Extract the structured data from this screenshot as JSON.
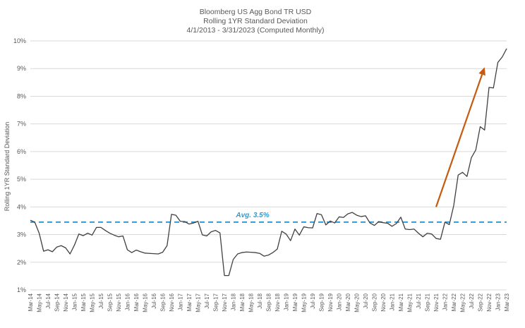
{
  "chart_data": {
    "type": "line",
    "title_lines": [
      "Bloomberg US Agg Bond TR USD",
      "Rolling 1YR Standard Deviation",
      "4/1/2013 - 3/31/2023 (Computed Monthly)"
    ],
    "xlabel": "",
    "ylabel": "Rolling 1YR Standard Deviation",
    "ylim": [
      1,
      10
    ],
    "yticks": [
      1,
      2,
      3,
      4,
      5,
      6,
      7,
      8,
      9,
      10
    ],
    "ytick_labels": [
      "1%",
      "2%",
      "3%",
      "4%",
      "5%",
      "6%",
      "7%",
      "8%",
      "9%",
      "10%"
    ],
    "grid": "horizontal",
    "xtick_labels": [
      "Mar-14",
      "May-14",
      "Jul-14",
      "Sep-14",
      "Nov-14",
      "Jan-15",
      "Mar-15",
      "May-15",
      "Jul-15",
      "Sep-15",
      "Nov-15",
      "Jan-16",
      "Mar-16",
      "May-16",
      "Jul-16",
      "Sep-16",
      "Nov-16",
      "Jan-17",
      "Mar-17",
      "May-17",
      "Jul-17",
      "Sep-17",
      "Nov-17",
      "Jan-18",
      "Mar-18",
      "May-18",
      "Jul-18",
      "Sep-18",
      "Nov-18",
      "Jan-19",
      "Mar-19",
      "May-19",
      "Jul-19",
      "Sep-19",
      "Nov-19",
      "Jan-20",
      "Mar-20",
      "May-20",
      "Jul-20",
      "Sep-20",
      "Nov-20",
      "Jan-21",
      "Mar-21",
      "May-21",
      "Jul-21",
      "Sep-21",
      "Nov-21",
      "Jan-22",
      "Mar-22",
      "May-22",
      "Jul-22",
      "Sep-22",
      "Nov-22",
      "Jan-23",
      "Mar-23"
    ],
    "series": [
      {
        "color": "#404040",
        "x_start": "Mar-14",
        "frequency": "monthly",
        "values": [
          3.52,
          3.45,
          3.05,
          2.4,
          2.45,
          2.38,
          2.55,
          2.6,
          2.52,
          2.3,
          2.62,
          3.02,
          2.96,
          3.05,
          2.98,
          3.26,
          3.26,
          3.15,
          3.05,
          2.98,
          2.92,
          2.95,
          2.45,
          2.35,
          2.44,
          2.38,
          2.33,
          2.32,
          2.31,
          2.3,
          2.36,
          2.6,
          3.73,
          3.7,
          3.48,
          3.47,
          3.38,
          3.42,
          3.48,
          2.99,
          2.95,
          3.1,
          3.15,
          3.06,
          1.52,
          1.52,
          2.1,
          2.3,
          2.35,
          2.37,
          2.36,
          2.35,
          2.32,
          2.22,
          2.26,
          2.35,
          2.48,
          3.12,
          3.02,
          2.78,
          3.2,
          2.98,
          3.28,
          3.25,
          3.24,
          3.76,
          3.72,
          3.35,
          3.49,
          3.42,
          3.64,
          3.62,
          3.75,
          3.8,
          3.7,
          3.65,
          3.68,
          3.42,
          3.33,
          3.47,
          3.43,
          3.41,
          3.3,
          3.4,
          3.63,
          3.2,
          3.18,
          3.2,
          3.05,
          2.92,
          3.05,
          3.02,
          2.86,
          2.83,
          3.45,
          3.36,
          4.05,
          5.15,
          5.25,
          5.1,
          5.78,
          6.06,
          6.9,
          6.78,
          8.32,
          8.3,
          9.22,
          9.42,
          9.72
        ]
      }
    ],
    "reference_line": {
      "value": 3.45,
      "label": "Avg. 3.5%",
      "color": "#2e9bd6",
      "style": "dashed"
    },
    "annotation_arrow": {
      "from": {
        "x": "Nov-21",
        "y": 4.0
      },
      "to": {
        "x": "Oct-22",
        "y": 9.05
      },
      "color": "#c55a11"
    }
  }
}
